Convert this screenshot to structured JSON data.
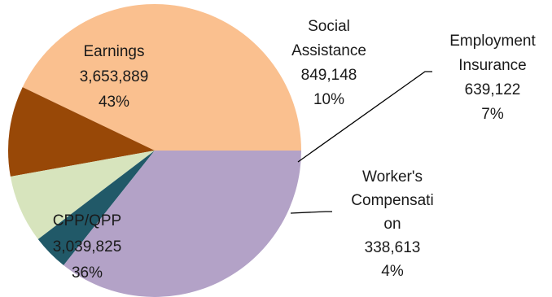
{
  "chart_data": {
    "type": "pie",
    "slices": [
      {
        "name": "Earnings",
        "value": 3653889,
        "value_label": "3,653,889",
        "percent_label": "43%",
        "color": "#FAC08F"
      },
      {
        "name": "Social Assistance",
        "value": 849148,
        "value_label": "849,148",
        "percent_label": "10%",
        "color": "#984807"
      },
      {
        "name": "Employment Insurance",
        "value": 639122,
        "value_label": "639,122",
        "percent_label": "7%",
        "color": "#D7E4BD"
      },
      {
        "name": "Worker's Compensation",
        "value": 338613,
        "value_label": "338,613",
        "percent_label": "4%",
        "color": "#215968"
      },
      {
        "name": "CPP/QPP",
        "value": 3039825,
        "value_label": "3,039,825",
        "percent_label": "36%",
        "color": "#B3A2C7"
      }
    ],
    "label_text": [
      [
        "Earnings",
        "3,653,889",
        "43%"
      ],
      [
        "Social",
        "Assistance",
        "849,148",
        "10%"
      ],
      [
        "Employment",
        "Insurance",
        "639,122",
        "7%"
      ],
      [
        "Worker's",
        "Compensati",
        "on",
        "338,613",
        "4%"
      ],
      [
        "CPP/QPP",
        "3,039,825",
        "36%"
      ]
    ],
    "legend": "none",
    "start_direction": "east",
    "orientation": "counter-clockwise"
  }
}
